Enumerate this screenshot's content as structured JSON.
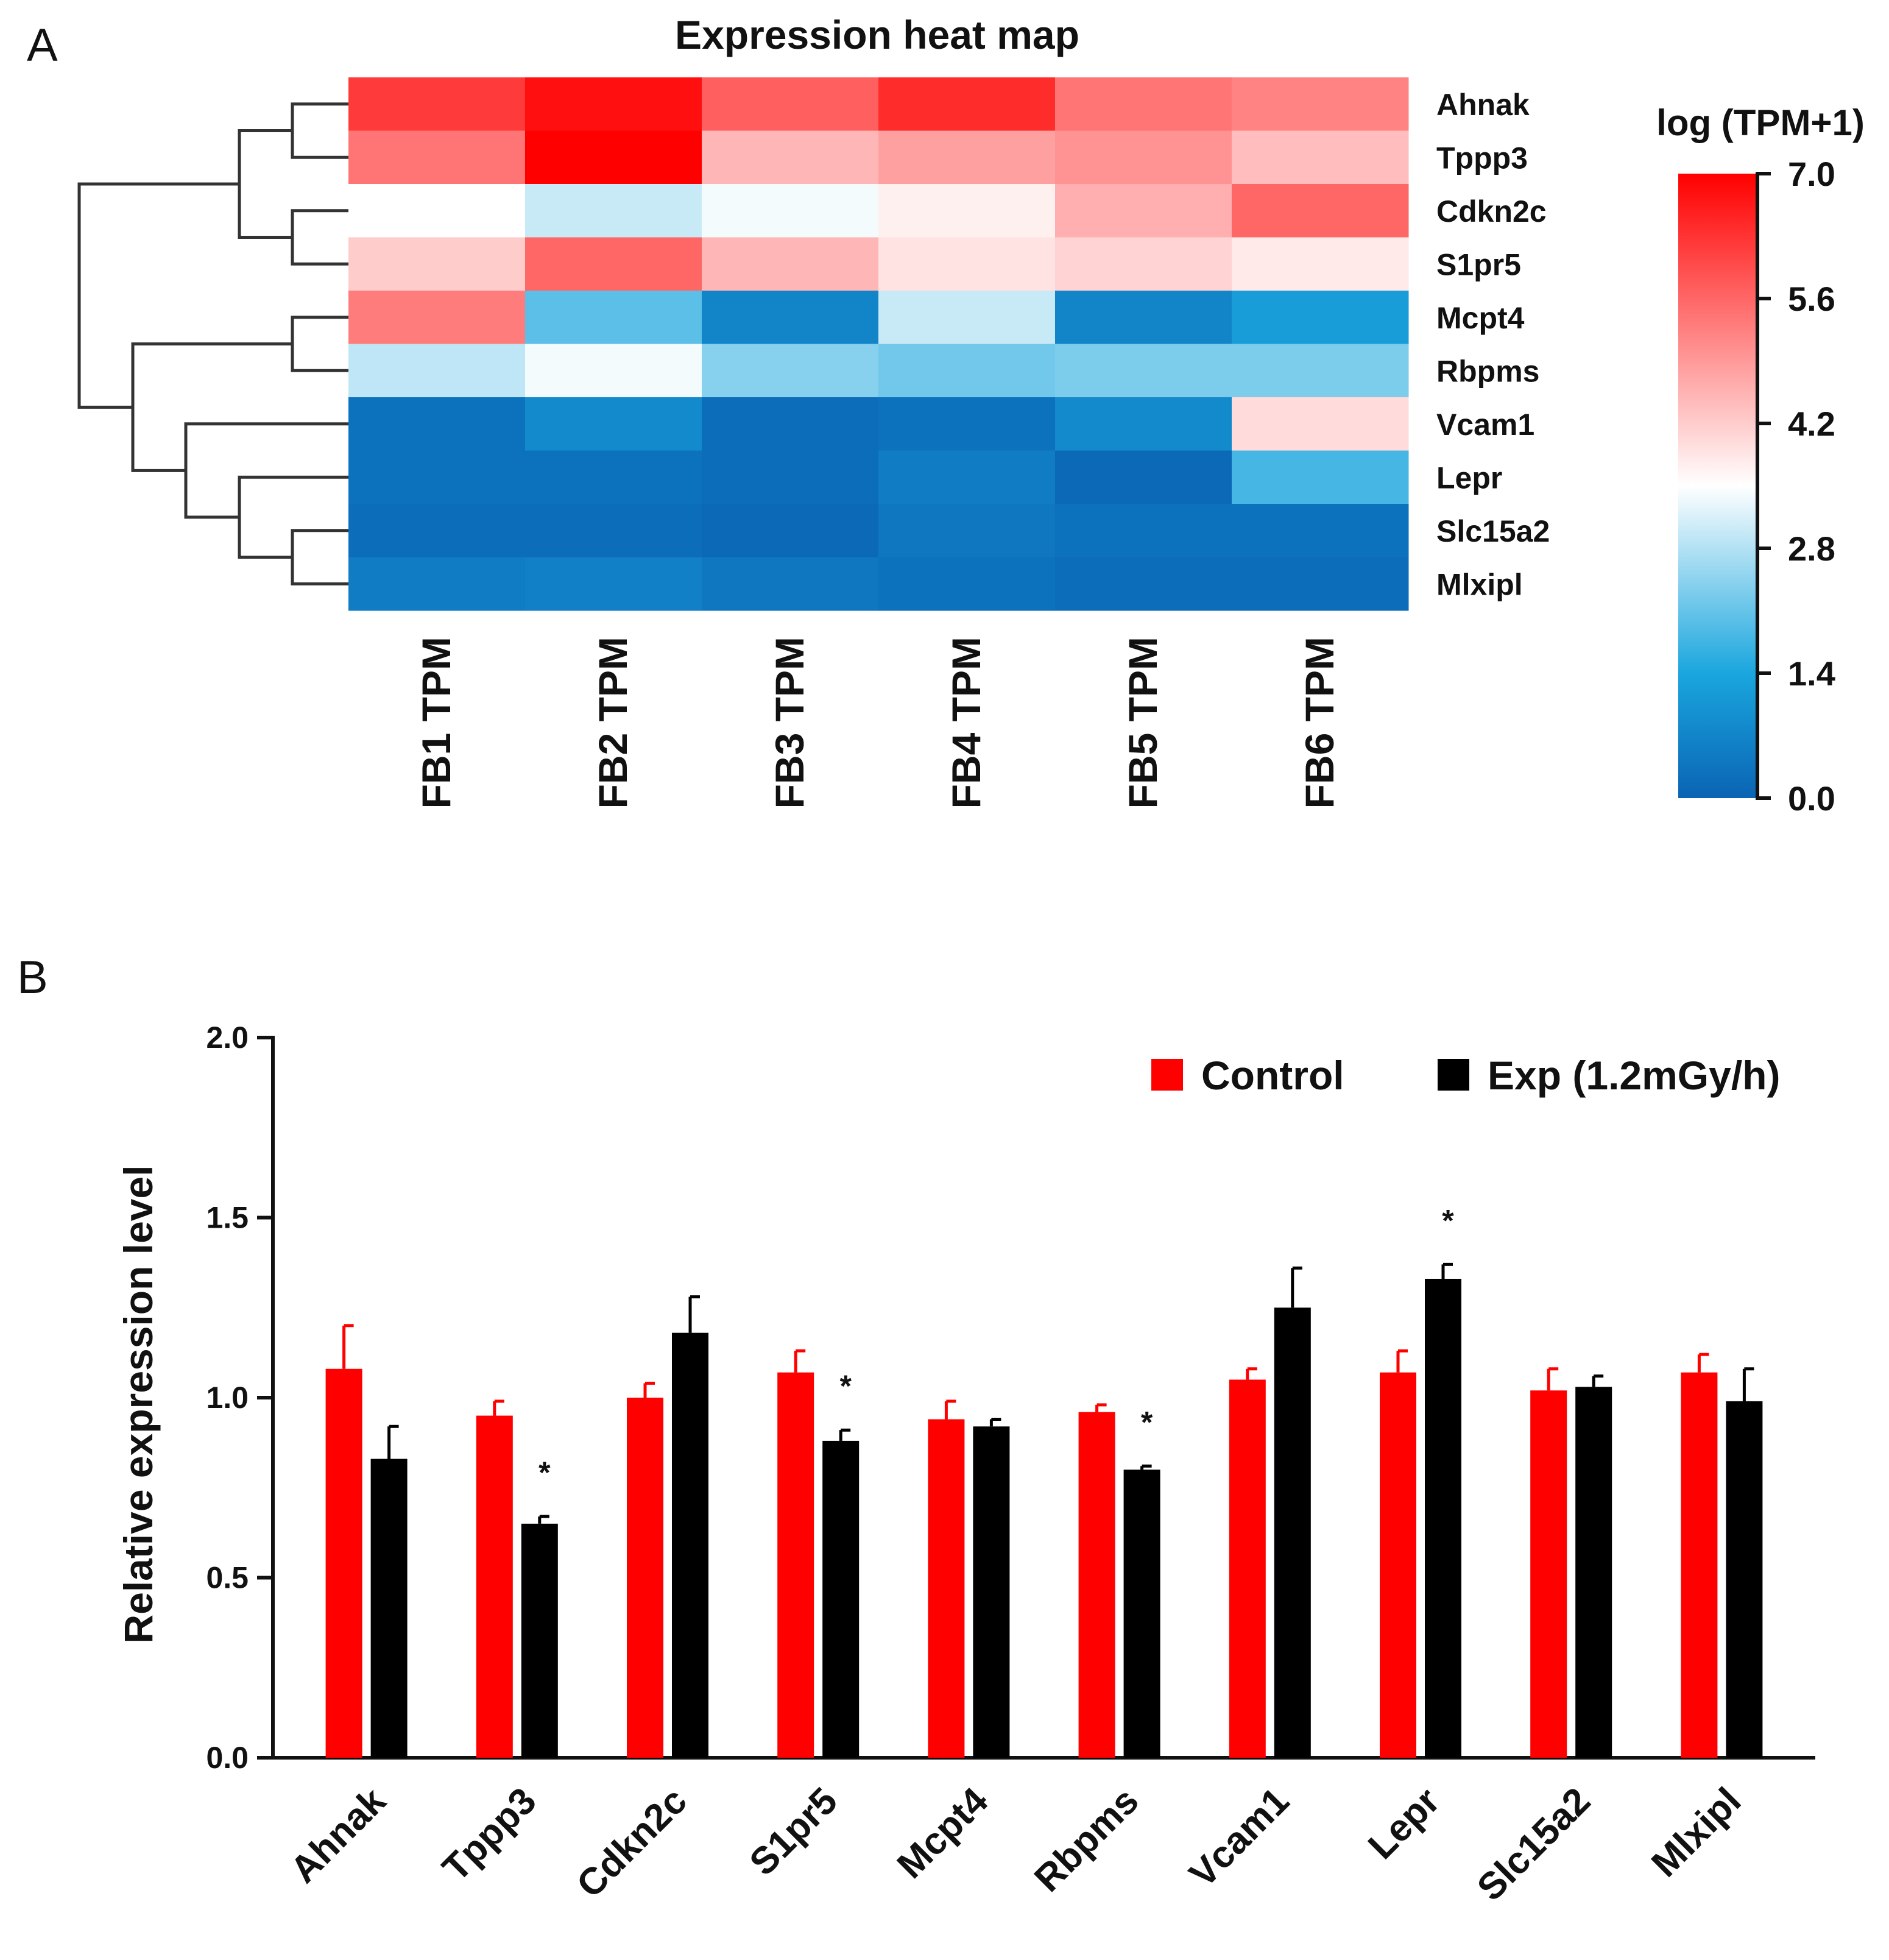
{
  "panel_a": {
    "letter": "A",
    "chart_data": {
      "type": "heatmap",
      "title": "Expression heat map",
      "rows": [
        "Ahnak",
        "Tppp3",
        "Cdkn2c",
        "S1pr5",
        "Mcpt4",
        "Rbpms",
        "Vcam1",
        "Lepr",
        "Slc15a2",
        "Mlxipl"
      ],
      "columns": [
        "FB1 TPM",
        "FB2 TPM",
        "FB3 TPM",
        "FB4 TPM",
        "FB5 TPM",
        "FB6 TPM"
      ],
      "values": [
        [
          6.2,
          6.8,
          5.7,
          6.4,
          5.4,
          5.2
        ],
        [
          5.4,
          7.0,
          4.5,
          4.8,
          5.0,
          4.4
        ],
        [
          3.5,
          3.0,
          3.4,
          3.7,
          4.6,
          5.6
        ],
        [
          4.2,
          5.6,
          4.5,
          3.9,
          4.1,
          3.8
        ],
        [
          5.3,
          2.0,
          0.7,
          3.0,
          0.7,
          1.2
        ],
        [
          2.9,
          3.4,
          2.4,
          2.2,
          2.3,
          2.3
        ],
        [
          0.3,
          0.8,
          0.2,
          0.3,
          0.8,
          4.0
        ],
        [
          0.3,
          0.3,
          0.2,
          0.5,
          0.1,
          1.8
        ],
        [
          0.2,
          0.2,
          0.1,
          0.4,
          0.3,
          0.3
        ],
        [
          0.5,
          0.6,
          0.4,
          0.3,
          0.2,
          0.2
        ]
      ],
      "colorbar": {
        "title": "log (TPM+1)",
        "ticks": [
          "7.0",
          "5.6",
          "4.2",
          "2.8",
          "1.4",
          "0.0"
        ],
        "min": 0,
        "max": 7,
        "mid": 3.5,
        "colors": {
          "low": "#0a64b4",
          "light_blue": "#1aa6de",
          "mid": "#ffffff",
          "high": "#ff0000"
        }
      },
      "dendrogram": {
        "description": "row clustering",
        "leaf_order": [
          "Ahnak",
          "Tppp3",
          "Cdkn2c",
          "S1pr5",
          "Mcpt4",
          "Rbpms",
          "Vcam1",
          "Lepr",
          "Slc15a2",
          "Mlxipl"
        ]
      }
    }
  },
  "panel_b": {
    "letter": "B",
    "chart_data": {
      "type": "bar",
      "title": "",
      "xlabel": "",
      "ylabel": "Relative expression level",
      "ylim": [
        0,
        2.0
      ],
      "yticks": [
        "0.0",
        "0.5",
        "1.0",
        "1.5",
        "2.0"
      ],
      "categories": [
        "Ahnak",
        "Tppp3",
        "Cdkn2c",
        "S1pr5",
        "Mcpt4",
        "Rbpms",
        "Vcam1",
        "Lepr",
        "Slc15a2",
        "Mlxipl"
      ],
      "series": [
        {
          "name": "Control",
          "color": "#ff0000",
          "values": [
            1.08,
            0.95,
            1.0,
            1.07,
            0.94,
            0.96,
            1.05,
            1.07,
            1.02,
            1.07
          ],
          "errors": [
            0.12,
            0.04,
            0.04,
            0.06,
            0.05,
            0.02,
            0.03,
            0.06,
            0.06,
            0.05
          ]
        },
        {
          "name": "Exp (1.2mGy/h)",
          "color": "#000000",
          "values": [
            0.83,
            0.65,
            1.18,
            0.88,
            0.92,
            0.8,
            1.25,
            1.33,
            1.03,
            0.99
          ],
          "errors": [
            0.09,
            0.02,
            0.1,
            0.03,
            0.02,
            0.01,
            0.11,
            0.04,
            0.03,
            0.09
          ]
        }
      ],
      "significance": [
        "",
        "*",
        "",
        "*",
        "",
        "*",
        "",
        "*",
        "",
        ""
      ]
    }
  }
}
